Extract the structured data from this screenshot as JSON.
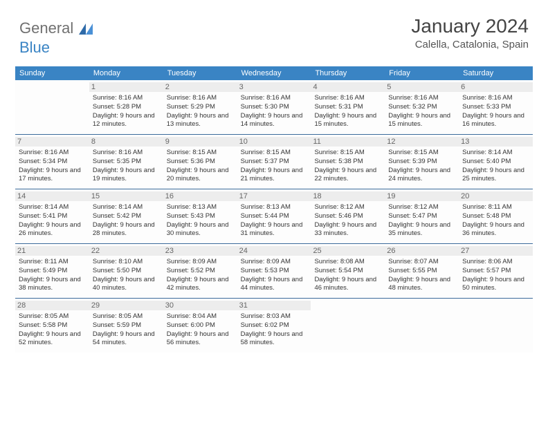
{
  "logo": {
    "text1": "General",
    "text2": "Blue"
  },
  "title": "January 2024",
  "subtitle": "Calella, Catalonia, Spain",
  "header_bg": "#3a84c4",
  "rule_color": "#3a6a9a",
  "daynum_bg": "#ededed",
  "dayNames": [
    "Sunday",
    "Monday",
    "Tuesday",
    "Wednesday",
    "Thursday",
    "Friday",
    "Saturday"
  ],
  "weeks": [
    [
      {
        "n": "",
        "sr": "",
        "ss": "",
        "dl": ""
      },
      {
        "n": "1",
        "sr": "Sunrise: 8:16 AM",
        "ss": "Sunset: 5:28 PM",
        "dl": "Daylight: 9 hours and 12 minutes."
      },
      {
        "n": "2",
        "sr": "Sunrise: 8:16 AM",
        "ss": "Sunset: 5:29 PM",
        "dl": "Daylight: 9 hours and 13 minutes."
      },
      {
        "n": "3",
        "sr": "Sunrise: 8:16 AM",
        "ss": "Sunset: 5:30 PM",
        "dl": "Daylight: 9 hours and 14 minutes."
      },
      {
        "n": "4",
        "sr": "Sunrise: 8:16 AM",
        "ss": "Sunset: 5:31 PM",
        "dl": "Daylight: 9 hours and 15 minutes."
      },
      {
        "n": "5",
        "sr": "Sunrise: 8:16 AM",
        "ss": "Sunset: 5:32 PM",
        "dl": "Daylight: 9 hours and 15 minutes."
      },
      {
        "n": "6",
        "sr": "Sunrise: 8:16 AM",
        "ss": "Sunset: 5:33 PM",
        "dl": "Daylight: 9 hours and 16 minutes."
      }
    ],
    [
      {
        "n": "7",
        "sr": "Sunrise: 8:16 AM",
        "ss": "Sunset: 5:34 PM",
        "dl": "Daylight: 9 hours and 17 minutes."
      },
      {
        "n": "8",
        "sr": "Sunrise: 8:16 AM",
        "ss": "Sunset: 5:35 PM",
        "dl": "Daylight: 9 hours and 19 minutes."
      },
      {
        "n": "9",
        "sr": "Sunrise: 8:15 AM",
        "ss": "Sunset: 5:36 PM",
        "dl": "Daylight: 9 hours and 20 minutes."
      },
      {
        "n": "10",
        "sr": "Sunrise: 8:15 AM",
        "ss": "Sunset: 5:37 PM",
        "dl": "Daylight: 9 hours and 21 minutes."
      },
      {
        "n": "11",
        "sr": "Sunrise: 8:15 AM",
        "ss": "Sunset: 5:38 PM",
        "dl": "Daylight: 9 hours and 22 minutes."
      },
      {
        "n": "12",
        "sr": "Sunrise: 8:15 AM",
        "ss": "Sunset: 5:39 PM",
        "dl": "Daylight: 9 hours and 24 minutes."
      },
      {
        "n": "13",
        "sr": "Sunrise: 8:14 AM",
        "ss": "Sunset: 5:40 PM",
        "dl": "Daylight: 9 hours and 25 minutes."
      }
    ],
    [
      {
        "n": "14",
        "sr": "Sunrise: 8:14 AM",
        "ss": "Sunset: 5:41 PM",
        "dl": "Daylight: 9 hours and 26 minutes."
      },
      {
        "n": "15",
        "sr": "Sunrise: 8:14 AM",
        "ss": "Sunset: 5:42 PM",
        "dl": "Daylight: 9 hours and 28 minutes."
      },
      {
        "n": "16",
        "sr": "Sunrise: 8:13 AM",
        "ss": "Sunset: 5:43 PM",
        "dl": "Daylight: 9 hours and 30 minutes."
      },
      {
        "n": "17",
        "sr": "Sunrise: 8:13 AM",
        "ss": "Sunset: 5:44 PM",
        "dl": "Daylight: 9 hours and 31 minutes."
      },
      {
        "n": "18",
        "sr": "Sunrise: 8:12 AM",
        "ss": "Sunset: 5:46 PM",
        "dl": "Daylight: 9 hours and 33 minutes."
      },
      {
        "n": "19",
        "sr": "Sunrise: 8:12 AM",
        "ss": "Sunset: 5:47 PM",
        "dl": "Daylight: 9 hours and 35 minutes."
      },
      {
        "n": "20",
        "sr": "Sunrise: 8:11 AM",
        "ss": "Sunset: 5:48 PM",
        "dl": "Daylight: 9 hours and 36 minutes."
      }
    ],
    [
      {
        "n": "21",
        "sr": "Sunrise: 8:11 AM",
        "ss": "Sunset: 5:49 PM",
        "dl": "Daylight: 9 hours and 38 minutes."
      },
      {
        "n": "22",
        "sr": "Sunrise: 8:10 AM",
        "ss": "Sunset: 5:50 PM",
        "dl": "Daylight: 9 hours and 40 minutes."
      },
      {
        "n": "23",
        "sr": "Sunrise: 8:09 AM",
        "ss": "Sunset: 5:52 PM",
        "dl": "Daylight: 9 hours and 42 minutes."
      },
      {
        "n": "24",
        "sr": "Sunrise: 8:09 AM",
        "ss": "Sunset: 5:53 PM",
        "dl": "Daylight: 9 hours and 44 minutes."
      },
      {
        "n": "25",
        "sr": "Sunrise: 8:08 AM",
        "ss": "Sunset: 5:54 PM",
        "dl": "Daylight: 9 hours and 46 minutes."
      },
      {
        "n": "26",
        "sr": "Sunrise: 8:07 AM",
        "ss": "Sunset: 5:55 PM",
        "dl": "Daylight: 9 hours and 48 minutes."
      },
      {
        "n": "27",
        "sr": "Sunrise: 8:06 AM",
        "ss": "Sunset: 5:57 PM",
        "dl": "Daylight: 9 hours and 50 minutes."
      }
    ],
    [
      {
        "n": "28",
        "sr": "Sunrise: 8:05 AM",
        "ss": "Sunset: 5:58 PM",
        "dl": "Daylight: 9 hours and 52 minutes."
      },
      {
        "n": "29",
        "sr": "Sunrise: 8:05 AM",
        "ss": "Sunset: 5:59 PM",
        "dl": "Daylight: 9 hours and 54 minutes."
      },
      {
        "n": "30",
        "sr": "Sunrise: 8:04 AM",
        "ss": "Sunset: 6:00 PM",
        "dl": "Daylight: 9 hours and 56 minutes."
      },
      {
        "n": "31",
        "sr": "Sunrise: 8:03 AM",
        "ss": "Sunset: 6:02 PM",
        "dl": "Daylight: 9 hours and 58 minutes."
      },
      {
        "n": "",
        "sr": "",
        "ss": "",
        "dl": ""
      },
      {
        "n": "",
        "sr": "",
        "ss": "",
        "dl": ""
      },
      {
        "n": "",
        "sr": "",
        "ss": "",
        "dl": ""
      }
    ]
  ]
}
